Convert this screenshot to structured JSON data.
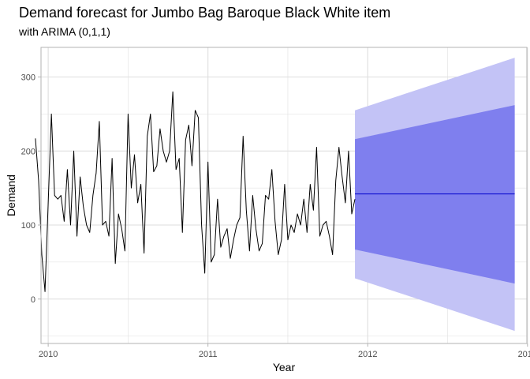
{
  "chart_data": {
    "type": "line",
    "title": "Demand forecast for Jumbo Bag Baroque Black White item",
    "subtitle": "with ARIMA (0,1,1)",
    "xlabel": "Year",
    "ylabel": "Demand",
    "xlim": [
      2009.955,
      2012.996
    ],
    "ylim": [
      -60,
      340
    ],
    "x_ticks": [
      2010,
      2011,
      2012,
      2013
    ],
    "x_minor_ticks": [
      2010.5,
      2011.5,
      2012.5
    ],
    "y_ticks": [
      0,
      100,
      200,
      300
    ],
    "y_minor_ticks": [
      -50,
      50,
      150,
      250
    ],
    "grid": true,
    "theme": "light",
    "colors": {
      "actual": "#000000",
      "forecast": "#0000CD",
      "band80": "#7F7FEE",
      "band95": "#C3C3F6",
      "grid": "#DEDEDE",
      "panel_border": "#B3B3B3"
    },
    "series": [
      {
        "kind": "actual",
        "x": [
          2009.92,
          2009.94,
          2009.96,
          2009.98,
          2010.0,
          2010.02,
          2010.04,
          2010.06,
          2010.08,
          2010.1,
          2010.12,
          2010.14,
          2010.16,
          2010.18,
          2010.2,
          2010.22,
          2010.24,
          2010.26,
          2010.28,
          2010.3,
          2010.32,
          2010.34,
          2010.36,
          2010.38,
          2010.4,
          2010.42,
          2010.44,
          2010.46,
          2010.48,
          2010.5,
          2010.52,
          2010.54,
          2010.56,
          2010.58,
          2010.6,
          2010.62,
          2010.64,
          2010.66,
          2010.68,
          2010.7,
          2010.72,
          2010.74,
          2010.76,
          2010.78,
          2010.8,
          2010.82,
          2010.84,
          2010.86,
          2010.88,
          2010.9,
          2010.92,
          2010.94,
          2010.96,
          2010.98,
          2011.0,
          2011.02,
          2011.04,
          2011.06,
          2011.08,
          2011.1,
          2011.12,
          2011.14,
          2011.16,
          2011.18,
          2011.2,
          2011.22,
          2011.24,
          2011.26,
          2011.28,
          2011.3,
          2011.32,
          2011.34,
          2011.36,
          2011.38,
          2011.4,
          2011.42,
          2011.44,
          2011.46,
          2011.48,
          2011.5,
          2011.52,
          2011.54,
          2011.56,
          2011.58,
          2011.6,
          2011.62,
          2011.64,
          2011.66,
          2011.68,
          2011.7,
          2011.72,
          2011.74,
          2011.76,
          2011.78,
          2011.8,
          2011.82,
          2011.84,
          2011.86,
          2011.88,
          2011.9,
          2011.92
        ],
        "y": [
          217,
          160,
          60,
          10,
          130,
          250,
          140,
          135,
          140,
          105,
          175,
          100,
          200,
          85,
          165,
          125,
          100,
          90,
          140,
          170,
          240,
          100,
          105,
          85,
          190,
          48,
          115,
          95,
          65,
          250,
          150,
          195,
          130,
          155,
          62,
          220,
          250,
          172,
          180,
          230,
          200,
          185,
          200,
          280,
          175,
          190,
          90,
          215,
          235,
          180,
          255,
          245,
          100,
          35,
          185,
          50,
          60,
          135,
          70,
          85,
          95,
          55,
          80,
          100,
          110,
          220,
          120,
          65,
          140,
          95,
          65,
          75,
          140,
          135,
          175,
          105,
          60,
          80,
          155,
          80,
          100,
          90,
          115,
          100,
          135,
          90,
          155,
          120,
          205,
          85,
          100,
          105,
          85,
          60,
          160,
          205,
          165,
          130,
          200,
          115,
          135
        ],
        "visible_on": "2009.92 to 2011.92"
      },
      {
        "kind": "forecast",
        "x": [
          2011.92,
          2012.92
        ],
        "y": [
          142,
          142
        ]
      }
    ],
    "bands": [
      {
        "level": "80%",
        "x": [
          2011.92,
          2012.92
        ],
        "lower": [
          67,
          21
        ],
        "upper": [
          216,
          262
        ]
      },
      {
        "level": "95%",
        "x": [
          2011.92,
          2012.92
        ],
        "lower": [
          28,
          -43
        ],
        "upper": [
          255,
          326
        ]
      }
    ]
  }
}
